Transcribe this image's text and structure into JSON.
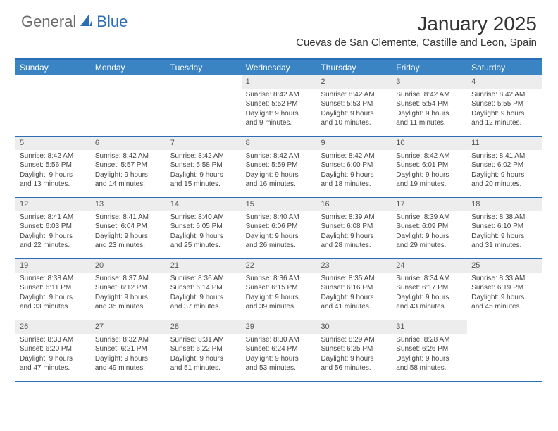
{
  "logo": {
    "text_left": "General",
    "text_right": "Blue"
  },
  "title": "January 2025",
  "location": "Cuevas de San Clemente, Castille and Leon, Spain",
  "colors": {
    "header_bg": "#3b84c4",
    "header_text": "#ffffff",
    "border": "#2a6fb5",
    "daynum_bg": "#ededed",
    "body_text": "#444444"
  },
  "day_headers": [
    "Sunday",
    "Monday",
    "Tuesday",
    "Wednesday",
    "Thursday",
    "Friday",
    "Saturday"
  ],
  "weeks": [
    [
      {
        "empty": true
      },
      {
        "empty": true
      },
      {
        "empty": true
      },
      {
        "num": "1",
        "sunrise": "Sunrise: 8:42 AM",
        "sunset": "Sunset: 5:52 PM",
        "day1": "Daylight: 9 hours",
        "day2": "and 9 minutes."
      },
      {
        "num": "2",
        "sunrise": "Sunrise: 8:42 AM",
        "sunset": "Sunset: 5:53 PM",
        "day1": "Daylight: 9 hours",
        "day2": "and 10 minutes."
      },
      {
        "num": "3",
        "sunrise": "Sunrise: 8:42 AM",
        "sunset": "Sunset: 5:54 PM",
        "day1": "Daylight: 9 hours",
        "day2": "and 11 minutes."
      },
      {
        "num": "4",
        "sunrise": "Sunrise: 8:42 AM",
        "sunset": "Sunset: 5:55 PM",
        "day1": "Daylight: 9 hours",
        "day2": "and 12 minutes."
      }
    ],
    [
      {
        "num": "5",
        "sunrise": "Sunrise: 8:42 AM",
        "sunset": "Sunset: 5:56 PM",
        "day1": "Daylight: 9 hours",
        "day2": "and 13 minutes."
      },
      {
        "num": "6",
        "sunrise": "Sunrise: 8:42 AM",
        "sunset": "Sunset: 5:57 PM",
        "day1": "Daylight: 9 hours",
        "day2": "and 14 minutes."
      },
      {
        "num": "7",
        "sunrise": "Sunrise: 8:42 AM",
        "sunset": "Sunset: 5:58 PM",
        "day1": "Daylight: 9 hours",
        "day2": "and 15 minutes."
      },
      {
        "num": "8",
        "sunrise": "Sunrise: 8:42 AM",
        "sunset": "Sunset: 5:59 PM",
        "day1": "Daylight: 9 hours",
        "day2": "and 16 minutes."
      },
      {
        "num": "9",
        "sunrise": "Sunrise: 8:42 AM",
        "sunset": "Sunset: 6:00 PM",
        "day1": "Daylight: 9 hours",
        "day2": "and 18 minutes."
      },
      {
        "num": "10",
        "sunrise": "Sunrise: 8:42 AM",
        "sunset": "Sunset: 6:01 PM",
        "day1": "Daylight: 9 hours",
        "day2": "and 19 minutes."
      },
      {
        "num": "11",
        "sunrise": "Sunrise: 8:41 AM",
        "sunset": "Sunset: 6:02 PM",
        "day1": "Daylight: 9 hours",
        "day2": "and 20 minutes."
      }
    ],
    [
      {
        "num": "12",
        "sunrise": "Sunrise: 8:41 AM",
        "sunset": "Sunset: 6:03 PM",
        "day1": "Daylight: 9 hours",
        "day2": "and 22 minutes."
      },
      {
        "num": "13",
        "sunrise": "Sunrise: 8:41 AM",
        "sunset": "Sunset: 6:04 PM",
        "day1": "Daylight: 9 hours",
        "day2": "and 23 minutes."
      },
      {
        "num": "14",
        "sunrise": "Sunrise: 8:40 AM",
        "sunset": "Sunset: 6:05 PM",
        "day1": "Daylight: 9 hours",
        "day2": "and 25 minutes."
      },
      {
        "num": "15",
        "sunrise": "Sunrise: 8:40 AM",
        "sunset": "Sunset: 6:06 PM",
        "day1": "Daylight: 9 hours",
        "day2": "and 26 minutes."
      },
      {
        "num": "16",
        "sunrise": "Sunrise: 8:39 AM",
        "sunset": "Sunset: 6:08 PM",
        "day1": "Daylight: 9 hours",
        "day2": "and 28 minutes."
      },
      {
        "num": "17",
        "sunrise": "Sunrise: 8:39 AM",
        "sunset": "Sunset: 6:09 PM",
        "day1": "Daylight: 9 hours",
        "day2": "and 29 minutes."
      },
      {
        "num": "18",
        "sunrise": "Sunrise: 8:38 AM",
        "sunset": "Sunset: 6:10 PM",
        "day1": "Daylight: 9 hours",
        "day2": "and 31 minutes."
      }
    ],
    [
      {
        "num": "19",
        "sunrise": "Sunrise: 8:38 AM",
        "sunset": "Sunset: 6:11 PM",
        "day1": "Daylight: 9 hours",
        "day2": "and 33 minutes."
      },
      {
        "num": "20",
        "sunrise": "Sunrise: 8:37 AM",
        "sunset": "Sunset: 6:12 PM",
        "day1": "Daylight: 9 hours",
        "day2": "and 35 minutes."
      },
      {
        "num": "21",
        "sunrise": "Sunrise: 8:36 AM",
        "sunset": "Sunset: 6:14 PM",
        "day1": "Daylight: 9 hours",
        "day2": "and 37 minutes."
      },
      {
        "num": "22",
        "sunrise": "Sunrise: 8:36 AM",
        "sunset": "Sunset: 6:15 PM",
        "day1": "Daylight: 9 hours",
        "day2": "and 39 minutes."
      },
      {
        "num": "23",
        "sunrise": "Sunrise: 8:35 AM",
        "sunset": "Sunset: 6:16 PM",
        "day1": "Daylight: 9 hours",
        "day2": "and 41 minutes."
      },
      {
        "num": "24",
        "sunrise": "Sunrise: 8:34 AM",
        "sunset": "Sunset: 6:17 PM",
        "day1": "Daylight: 9 hours",
        "day2": "and 43 minutes."
      },
      {
        "num": "25",
        "sunrise": "Sunrise: 8:33 AM",
        "sunset": "Sunset: 6:19 PM",
        "day1": "Daylight: 9 hours",
        "day2": "and 45 minutes."
      }
    ],
    [
      {
        "num": "26",
        "sunrise": "Sunrise: 8:33 AM",
        "sunset": "Sunset: 6:20 PM",
        "day1": "Daylight: 9 hours",
        "day2": "and 47 minutes."
      },
      {
        "num": "27",
        "sunrise": "Sunrise: 8:32 AM",
        "sunset": "Sunset: 6:21 PM",
        "day1": "Daylight: 9 hours",
        "day2": "and 49 minutes."
      },
      {
        "num": "28",
        "sunrise": "Sunrise: 8:31 AM",
        "sunset": "Sunset: 6:22 PM",
        "day1": "Daylight: 9 hours",
        "day2": "and 51 minutes."
      },
      {
        "num": "29",
        "sunrise": "Sunrise: 8:30 AM",
        "sunset": "Sunset: 6:24 PM",
        "day1": "Daylight: 9 hours",
        "day2": "and 53 minutes."
      },
      {
        "num": "30",
        "sunrise": "Sunrise: 8:29 AM",
        "sunset": "Sunset: 6:25 PM",
        "day1": "Daylight: 9 hours",
        "day2": "and 56 minutes."
      },
      {
        "num": "31",
        "sunrise": "Sunrise: 8:28 AM",
        "sunset": "Sunset: 6:26 PM",
        "day1": "Daylight: 9 hours",
        "day2": "and 58 minutes."
      },
      {
        "empty": true
      }
    ]
  ]
}
